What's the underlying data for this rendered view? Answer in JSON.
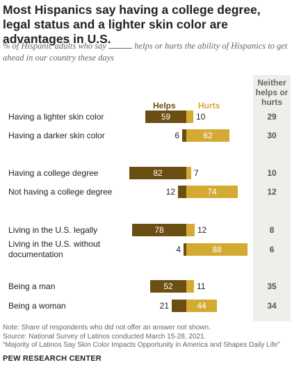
{
  "chart_data": {
    "type": "bar",
    "title": "Most Hispanics say having a college degree, legal status and a lighter skin color are advantages in U.S.",
    "subtitle_before": "% of Hispanic adults who say",
    "subtitle_after": "helps or hurts the ability of Hispanics to get ahead in our country these days",
    "series": [
      {
        "name": "Helps",
        "color": "#6b4f12",
        "values": [
          59,
          6,
          82,
          12,
          78,
          4,
          52,
          21
        ]
      },
      {
        "name": "Hurts",
        "color": "#d4aa33",
        "values": [
          10,
          62,
          7,
          74,
          12,
          88,
          11,
          44
        ]
      }
    ],
    "neither_header": [
      "Neither",
      "helps or",
      "hurts"
    ],
    "neither_values": [
      29,
      30,
      10,
      12,
      8,
      6,
      35,
      34
    ],
    "categories": [
      [
        "Having a lighter skin color"
      ],
      [
        "Having a darker skin color"
      ],
      [
        "Having a college degree"
      ],
      [
        "Not having a college degree"
      ],
      [
        "Living in the U.S. legally"
      ],
      [
        "Living in the U.S. without",
        "documentation"
      ],
      [
        "Being a man"
      ],
      [
        "Being a woman"
      ]
    ]
  },
  "footer": {
    "note": "Note: Share of respondents who did not offer an answer not shown.",
    "source": "Source: National Survey of Latinos conducted March 15-28, 2021.",
    "report": "“Majority of Latinos Say Skin Color Impacts Opportunity in America and Shapes Daily Life”",
    "brand": "PEW RESEARCH CENTER"
  }
}
